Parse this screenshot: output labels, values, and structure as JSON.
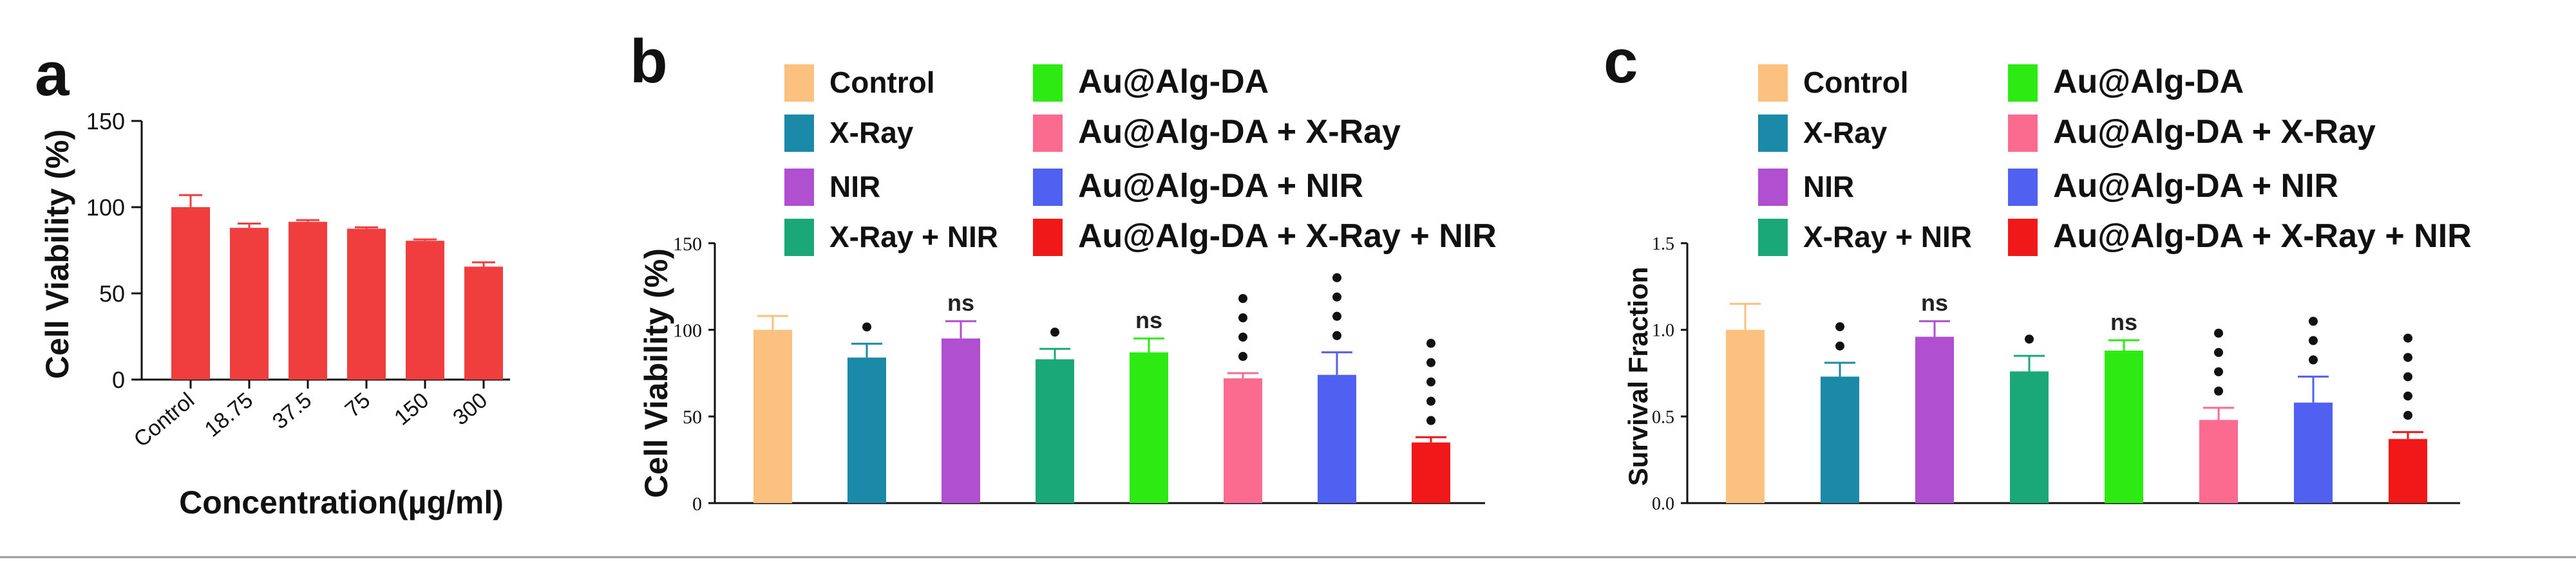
{
  "chart_data": [
    {
      "panel": "a",
      "type": "bar",
      "categories": [
        "Control",
        "18.75",
        "37.5",
        "75",
        "150",
        "300"
      ],
      "values": [
        100,
        88,
        91.5,
        87.5,
        80.5,
        65.5
      ],
      "errors": [
        7,
        2.5,
        1,
        0.8,
        0.8,
        2.5
      ],
      "bar_color": "#f03e3e",
      "xlabel": "Concentration(µg/ml)",
      "ylabel": "Cell Viability (%)",
      "ylim": [
        0,
        150
      ],
      "yticks": [
        0,
        50,
        100,
        150
      ],
      "legend": "none"
    },
    {
      "panel": "b",
      "type": "bar",
      "categories": [
        "Control",
        "X-Ray",
        "NIR",
        "X-Ray + NIR",
        "Au@Alg-DA",
        "Au@Alg-DA + X-Ray",
        "Au@Alg-DA + NIR",
        "Au@Alg-DA + X-Ray + NIR"
      ],
      "values": [
        100,
        84,
        95,
        83,
        87,
        72,
        74,
        35
      ],
      "errors": [
        8,
        8,
        10,
        6,
        8,
        3,
        13,
        3
      ],
      "significance": [
        "",
        "*",
        "ns",
        "*",
        "ns",
        "****",
        "****",
        "*****"
      ],
      "colors": [
        "#fcc07f",
        "#1a8aa8",
        "#b04fcf",
        "#1aa878",
        "#2cea12",
        "#fa6b8f",
        "#5060f0",
        "#f01818"
      ],
      "ylabel": "Cell Viability (%)",
      "ylim": [
        0,
        150
      ],
      "yticks": [
        0,
        50,
        100,
        150
      ],
      "legend": "top"
    },
    {
      "panel": "c",
      "type": "bar",
      "categories": [
        "Control",
        "X-Ray",
        "NIR",
        "X-Ray + NIR",
        "Au@Alg-DA",
        "Au@Alg-DA + X-Ray",
        "Au@Alg-DA + NIR",
        "Au@Alg-DA + X-Ray + NIR"
      ],
      "values": [
        1.0,
        0.73,
        0.96,
        0.76,
        0.88,
        0.48,
        0.58,
        0.37
      ],
      "errors": [
        0.15,
        0.08,
        0.09,
        0.09,
        0.06,
        0.07,
        0.15,
        0.04
      ],
      "significance": [
        "",
        "**",
        "ns",
        "*",
        "ns",
        "****",
        "***",
        "*****"
      ],
      "colors": [
        "#fcc07f",
        "#1a8aa8",
        "#b04fcf",
        "#1aa878",
        "#2cea12",
        "#fa6b8f",
        "#5060f0",
        "#f01818"
      ],
      "ylabel": "Survival Fraction",
      "ylim": [
        0,
        1.5
      ],
      "yticks": [
        "0.0",
        "0.5",
        "1.0",
        "1.5"
      ],
      "legend": "top"
    }
  ]
}
